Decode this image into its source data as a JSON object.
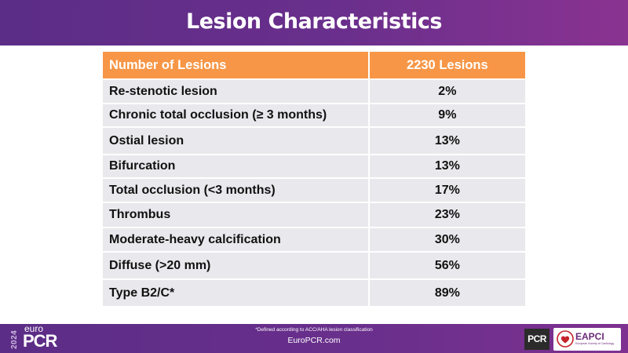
{
  "slide": {
    "title": "Lesion Characteristics"
  },
  "table": {
    "header": {
      "label": "Number of Lesions",
      "value": "2230 Lesions"
    },
    "rows": [
      {
        "label": "Re-stenotic lesion",
        "value": "2%"
      },
      {
        "label": "Chronic total occlusion (≥ 3 months)",
        "value": "9%"
      },
      {
        "label": "Ostial lesion",
        "value": "13%"
      },
      {
        "label": "Bifurcation",
        "value": "13%"
      },
      {
        "label": "Total occlusion (<3 months)",
        "value": "17%"
      },
      {
        "label": "Thrombus",
        "value": "23%"
      },
      {
        "label": "Moderate-heavy calcification",
        "value": "30%"
      },
      {
        "label": "Diffuse (>20 mm)",
        "value": "56%"
      },
      {
        "label": "Type B2/C*",
        "value": "89%"
      }
    ]
  },
  "footer": {
    "footnote": "*Defined according to ACC/AHA lesion classification",
    "url": "EuroPCR.com",
    "year": "2024",
    "brand_prefix": "euro",
    "brand_name": "PCR",
    "pcr_logo_text": "PCR",
    "eapci_logo_text": "EAPCI",
    "eapci_logo_subtext": "European Society of Cardiology"
  },
  "colors": {
    "header_purple": "#5b2d86",
    "table_header_orange": "#f79646",
    "row_gray": "#e9e8ec"
  }
}
